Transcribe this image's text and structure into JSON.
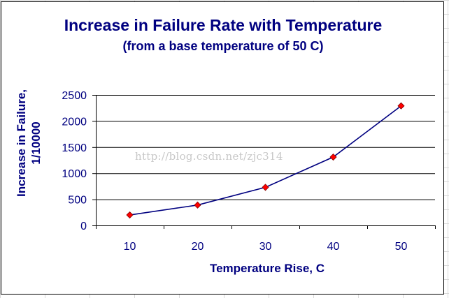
{
  "chart_data": {
    "type": "line",
    "title": "Increase in Failure Rate with Temperature",
    "subtitle": "(from a base temperature of 50 C)",
    "xlabel": "Temperature Rise, C",
    "ylabel_lines": [
      "Increase in Failure,",
      "1/10000"
    ],
    "categories": [
      "10",
      "20",
      "30",
      "40",
      "50"
    ],
    "x": [
      10,
      20,
      30,
      40,
      50
    ],
    "values": [
      200,
      390,
      730,
      1310,
      2290
    ],
    "ylim": [
      0,
      2500
    ],
    "yticks": [
      "0",
      "500",
      "1000",
      "1500",
      "2000",
      "2500"
    ],
    "grid": "horizontal",
    "line_color": "#000080",
    "marker_color": "#ff0000",
    "grid_color": "#000000"
  },
  "watermark": "http://blog.csdn.net/zjc314"
}
